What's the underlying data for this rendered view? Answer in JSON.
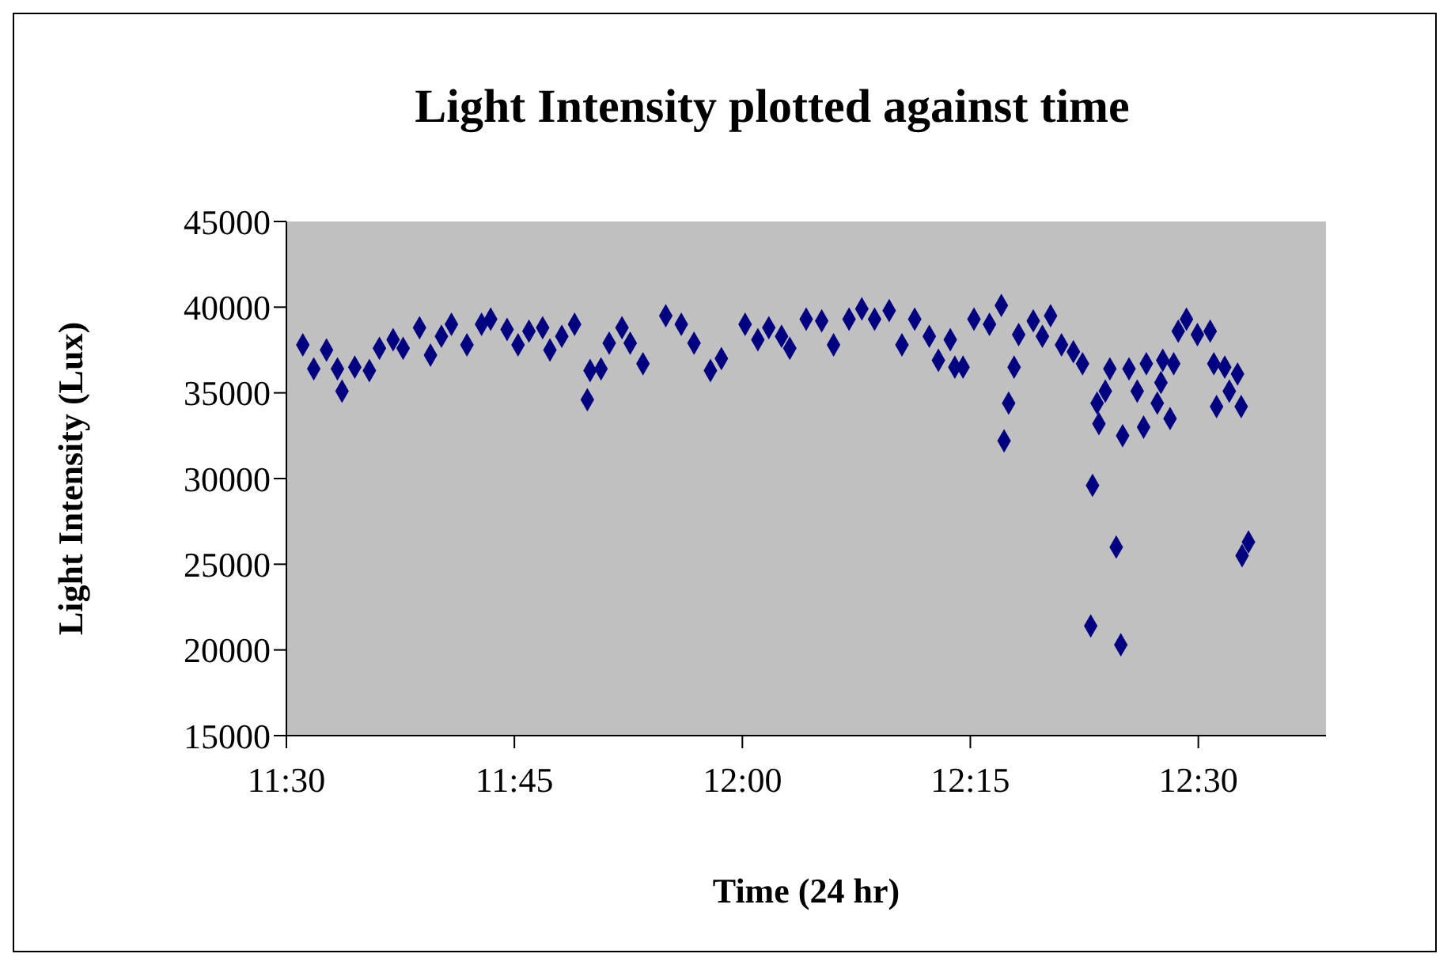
{
  "chart_data": {
    "type": "scatter",
    "title": "Light Intensity plotted against time",
    "xlabel": "Time (24 hr)",
    "ylabel": "Light Intensity (Lux)",
    "x": [
      11.518,
      11.53,
      11.544,
      11.556,
      11.561,
      11.575,
      11.591,
      11.602,
      11.617,
      11.628,
      11.646,
      11.658,
      11.67,
      11.681,
      11.698,
      11.714,
      11.724,
      11.742,
      11.754,
      11.766,
      11.781,
      11.789,
      11.802,
      11.816,
      11.83,
      11.833,
      11.845,
      11.854,
      11.868,
      11.877,
      11.891,
      11.916,
      11.933,
      11.947,
      11.965,
      11.977,
      12.003,
      12.017,
      12.029,
      12.043,
      12.052,
      12.07,
      12.087,
      12.1,
      12.117,
      12.131,
      12.145,
      12.161,
      12.175,
      12.189,
      12.205,
      12.215,
      12.228,
      12.233,
      12.242,
      12.254,
      12.271,
      12.284,
      12.298,
      12.292,
      12.287,
      12.303,
      12.319,
      12.338,
      12.329,
      12.35,
      12.363,
      12.373,
      12.403,
      12.389,
      12.391,
      12.384,
      12.41,
      12.382,
      12.415,
      12.398,
      12.424,
      12.417,
      12.433,
      12.443,
      12.455,
      12.44,
      12.459,
      12.461,
      12.473,
      12.469,
      12.478,
      12.487,
      12.499,
      12.513,
      12.517,
      12.529,
      12.543,
      12.534,
      12.52,
      12.547,
      12.555,
      12.548
    ],
    "series": [
      {
        "color": "#000080",
        "values": [
          37800,
          36400,
          37500,
          36400,
          35100,
          36500,
          36300,
          37600,
          38100,
          37600,
          38800,
          37200,
          38300,
          39000,
          37800,
          39000,
          39300,
          38700,
          37800,
          38600,
          38800,
          37500,
          38300,
          39000,
          34600,
          36300,
          36400,
          37900,
          38800,
          37900,
          36700,
          39500,
          39000,
          37900,
          36300,
          37000,
          39000,
          38100,
          38800,
          38300,
          37600,
          39300,
          39200,
          37800,
          39300,
          39900,
          39300,
          39800,
          37800,
          39300,
          38300,
          36900,
          38100,
          36500,
          36500,
          39300,
          39000,
          40100,
          36500,
          34400,
          32200,
          38400,
          39200,
          39500,
          38300,
          37800,
          37400,
          36700,
          36400,
          34400,
          33200,
          29600,
          26000,
          21400,
          20300,
          35100,
          36400,
          32500,
          35100,
          36700,
          34400,
          33000,
          35600,
          36900,
          36700,
          33500,
          38600,
          39300,
          38400,
          38600,
          36700,
          36500,
          36100,
          35100,
          34200,
          34200,
          26300,
          25500
        ]
      }
    ],
    "xlim": [
      11.5,
      12.64
    ],
    "xticks": [
      {
        "value": 11.5,
        "label": "11:30"
      },
      {
        "value": 11.75,
        "label": "11:45"
      },
      {
        "value": 12,
        "label": "12:00"
      },
      {
        "value": 12.25,
        "label": "12:15"
      },
      {
        "value": 12.5,
        "label": "12:30"
      }
    ],
    "ylim": [
      15000,
      45000
    ],
    "yticks": [
      15000,
      20000,
      25000,
      30000,
      35000,
      40000,
      45000
    ],
    "marker": "diamond",
    "grid": false,
    "legend": false
  }
}
